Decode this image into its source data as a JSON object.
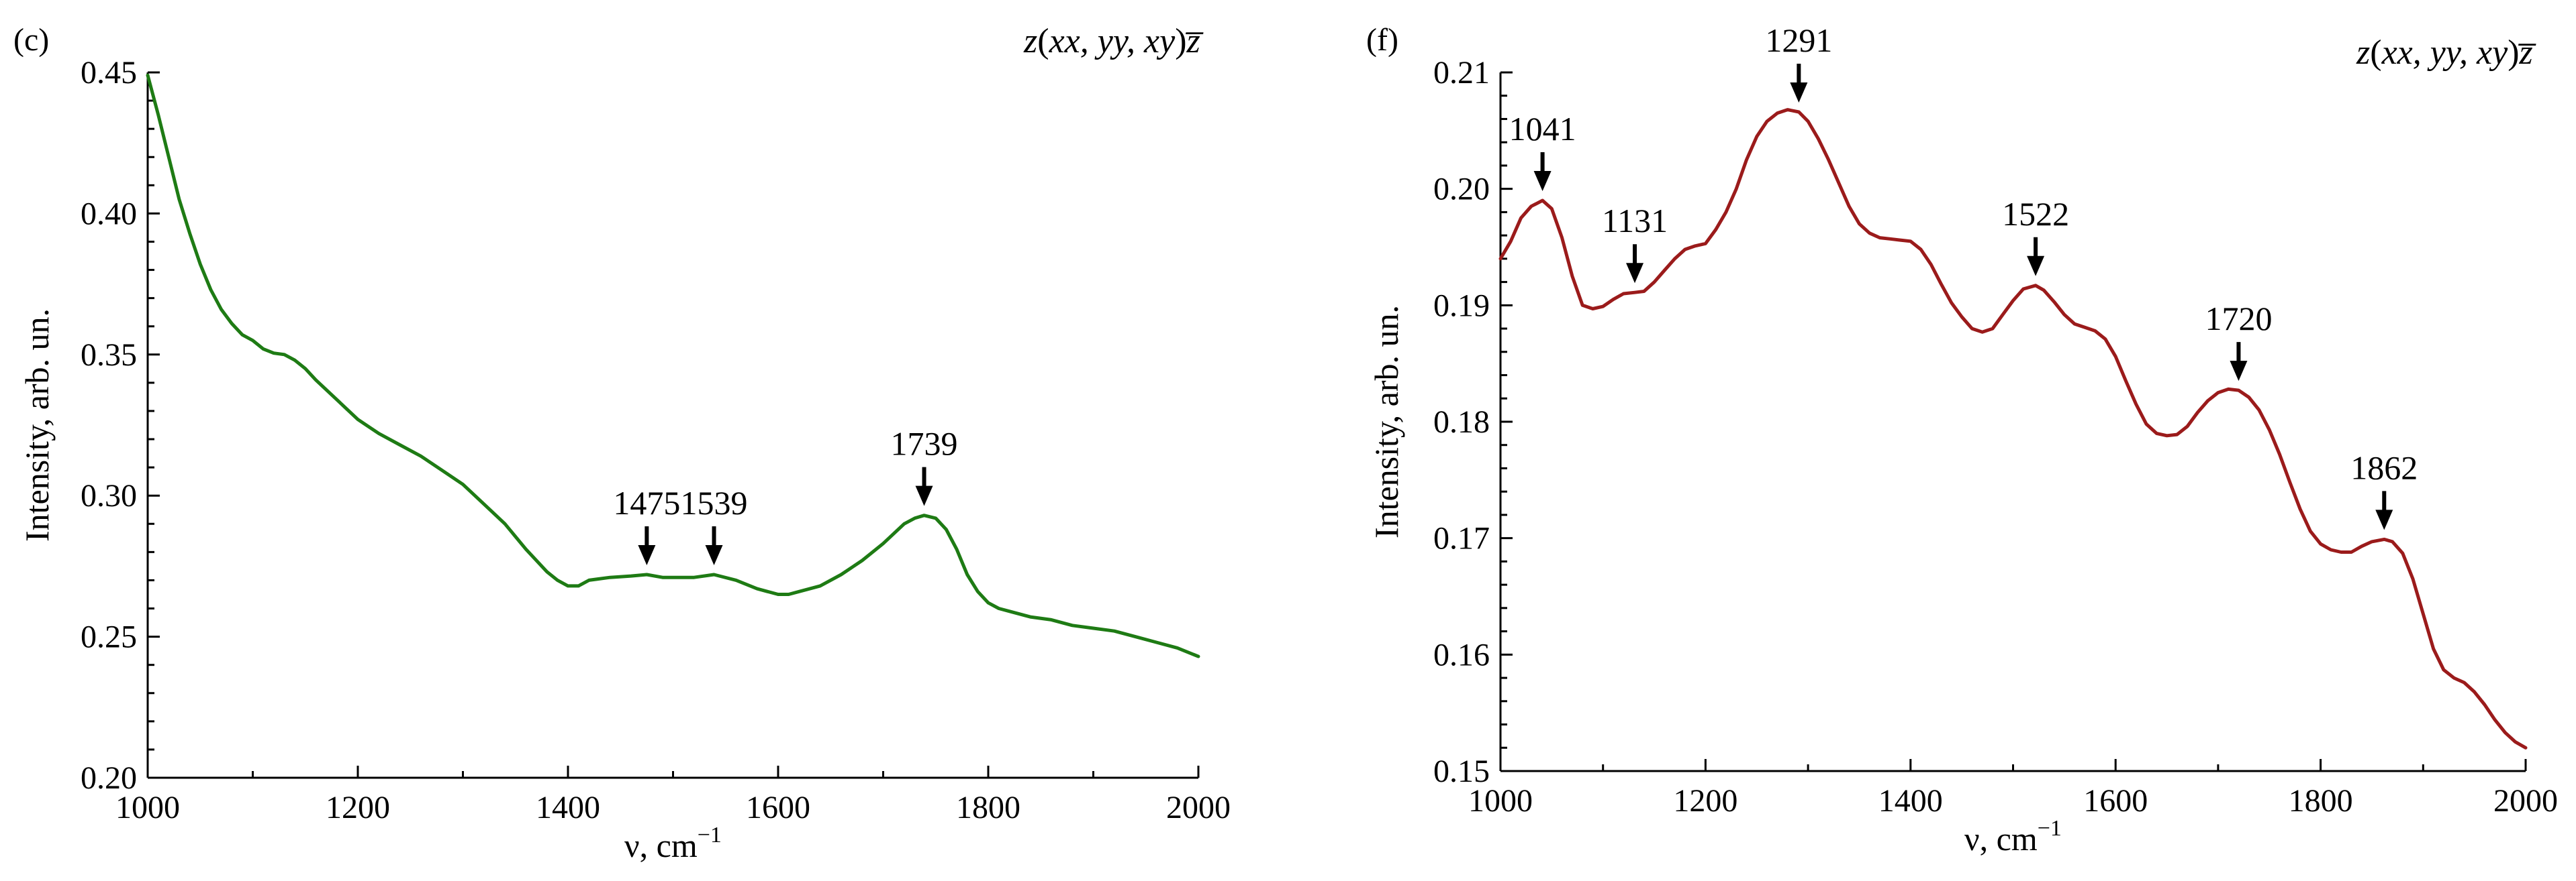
{
  "chart_data": [
    {
      "panel": "(c)",
      "type": "line",
      "notation": {
        "pre": "z",
        "inner": "xx, yy, xy",
        "post": "z̅"
      },
      "xlabel": "ν, cm",
      "xlabel_sup": "−1",
      "ylabel": "Intensity, arb. un.",
      "xlim": [
        1000,
        2000
      ],
      "ylim": [
        0.2,
        0.45
      ],
      "x_ticks": [
        1000,
        1200,
        1400,
        1600,
        1800,
        2000
      ],
      "x_tick_labels": [
        "1000",
        "1200",
        "1400",
        "1600",
        "1800",
        "2000"
      ],
      "y_ticks": [
        0.2,
        0.25,
        0.3,
        0.35,
        0.4,
        0.45
      ],
      "y_tick_labels": [
        "0.20",
        "0.25",
        "0.30",
        "0.35",
        "0.40",
        "0.45"
      ],
      "grid": false,
      "legend": "none",
      "color": "#1e7b14",
      "series": [
        {
          "x": [
            1000,
            1010,
            1020,
            1030,
            1040,
            1050,
            1060,
            1070,
            1080,
            1090,
            1100,
            1110,
            1120,
            1130,
            1140,
            1150,
            1160,
            1180,
            1200,
            1220,
            1240,
            1260,
            1280,
            1300,
            1320,
            1340,
            1360,
            1380,
            1390,
            1400,
            1410,
            1420,
            1440,
            1460,
            1475,
            1490,
            1500,
            1520,
            1539,
            1560,
            1580,
            1600,
            1610,
            1620,
            1640,
            1660,
            1680,
            1700,
            1720,
            1730,
            1739,
            1750,
            1760,
            1770,
            1780,
            1790,
            1800,
            1810,
            1820,
            1840,
            1860,
            1880,
            1900,
            1920,
            1940,
            1960,
            1980,
            2000
          ],
          "y": [
            0.449,
            0.435,
            0.42,
            0.405,
            0.393,
            0.382,
            0.373,
            0.366,
            0.361,
            0.357,
            0.355,
            0.352,
            0.3505,
            0.35,
            0.348,
            0.345,
            0.341,
            0.334,
            0.327,
            0.322,
            0.318,
            0.314,
            0.309,
            0.304,
            0.297,
            0.29,
            0.281,
            0.273,
            0.27,
            0.268,
            0.268,
            0.27,
            0.271,
            0.2715,
            0.272,
            0.271,
            0.271,
            0.271,
            0.272,
            0.27,
            0.267,
            0.265,
            0.265,
            0.266,
            0.268,
            0.272,
            0.277,
            0.283,
            0.29,
            0.292,
            0.293,
            0.292,
            0.288,
            0.281,
            0.272,
            0.266,
            0.262,
            0.26,
            0.259,
            0.257,
            0.256,
            0.254,
            0.253,
            0.252,
            0.25,
            0.248,
            0.246,
            0.243
          ]
        }
      ],
      "annotations": [
        {
          "label": "1475",
          "x": 1475,
          "y": 0.272
        },
        {
          "label": "1539",
          "x": 1539,
          "y": 0.272
        },
        {
          "label": "1739",
          "x": 1739,
          "y": 0.293
        }
      ]
    },
    {
      "panel": "(f)",
      "type": "line",
      "notation": {
        "pre": "z",
        "inner": "xx, yy, xy",
        "post": "z̅"
      },
      "xlabel": "ν, cm",
      "xlabel_sup": "−1",
      "ylabel": "Intensity, arb. un.",
      "xlim": [
        1000,
        2000
      ],
      "ylim": [
        0.15,
        0.21
      ],
      "x_ticks": [
        1000,
        1200,
        1400,
        1600,
        1800,
        2000
      ],
      "x_tick_labels": [
        "1000",
        "1200",
        "1400",
        "1600",
        "1800",
        "2000"
      ],
      "y_ticks": [
        0.15,
        0.16,
        0.17,
        0.18,
        0.19,
        0.2,
        0.21
      ],
      "y_tick_labels": [
        "0.15",
        "0.16",
        "0.17",
        "0.18",
        "0.19",
        "0.20",
        "0.21"
      ],
      "grid": false,
      "legend": "none",
      "color": "#9b1b1b",
      "series": [
        {
          "x": [
            1000,
            1010,
            1020,
            1030,
            1041,
            1050,
            1060,
            1070,
            1080,
            1090,
            1100,
            1110,
            1120,
            1131,
            1140,
            1150,
            1160,
            1170,
            1180,
            1190,
            1200,
            1210,
            1220,
            1230,
            1240,
            1250,
            1260,
            1270,
            1280,
            1291,
            1300,
            1310,
            1320,
            1330,
            1340,
            1350,
            1360,
            1370,
            1380,
            1390,
            1400,
            1410,
            1420,
            1430,
            1440,
            1450,
            1460,
            1470,
            1480,
            1490,
            1500,
            1510,
            1522,
            1530,
            1540,
            1550,
            1560,
            1570,
            1580,
            1590,
            1600,
            1610,
            1620,
            1630,
            1640,
            1650,
            1660,
            1670,
            1680,
            1690,
            1700,
            1710,
            1720,
            1730,
            1740,
            1750,
            1760,
            1770,
            1780,
            1790,
            1800,
            1810,
            1820,
            1830,
            1840,
            1850,
            1862,
            1870,
            1880,
            1890,
            1900,
            1910,
            1920,
            1930,
            1940,
            1950,
            1960,
            1970,
            1980,
            1990,
            2000
          ],
          "y": [
            0.194,
            0.1955,
            0.1975,
            0.1985,
            0.199,
            0.1983,
            0.1958,
            0.1925,
            0.19,
            0.1897,
            0.1899,
            0.1905,
            0.191,
            0.1911,
            0.1912,
            0.192,
            0.193,
            0.194,
            0.1948,
            0.1951,
            0.1953,
            0.1965,
            0.198,
            0.2,
            0.2025,
            0.2045,
            0.2058,
            0.2065,
            0.2068,
            0.2066,
            0.2058,
            0.2043,
            0.2025,
            0.2005,
            0.1985,
            0.197,
            0.1962,
            0.1958,
            0.1957,
            0.1956,
            0.1955,
            0.1948,
            0.1935,
            0.1918,
            0.1902,
            0.189,
            0.188,
            0.1877,
            0.188,
            0.1892,
            0.1904,
            0.1914,
            0.1917,
            0.1913,
            0.1903,
            0.1892,
            0.1884,
            0.1881,
            0.1878,
            0.1871,
            0.1856,
            0.1835,
            0.1815,
            0.1798,
            0.179,
            0.1788,
            0.1789,
            0.1796,
            0.1808,
            0.1818,
            0.1825,
            0.1828,
            0.1827,
            0.1821,
            0.181,
            0.1793,
            0.1772,
            0.1748,
            0.1725,
            0.1706,
            0.1695,
            0.169,
            0.1688,
            0.1688,
            0.1693,
            0.1697,
            0.1699,
            0.1697,
            0.1687,
            0.1665,
            0.1635,
            0.1605,
            0.1587,
            0.158,
            0.1576,
            0.1568,
            0.1557,
            0.1544,
            0.1533,
            0.1525,
            0.152
          ]
        }
      ],
      "annotations": [
        {
          "label": "1041",
          "x": 1041,
          "y": 0.199
        },
        {
          "label": "1131",
          "x": 1131,
          "y": 0.1911
        },
        {
          "label": "1291",
          "x": 1291,
          "y": 0.2066
        },
        {
          "label": "1522",
          "x": 1522,
          "y": 0.1917
        },
        {
          "label": "1720",
          "x": 1720,
          "y": 0.1827
        },
        {
          "label": "1862",
          "x": 1862,
          "y": 0.1699
        }
      ]
    }
  ]
}
